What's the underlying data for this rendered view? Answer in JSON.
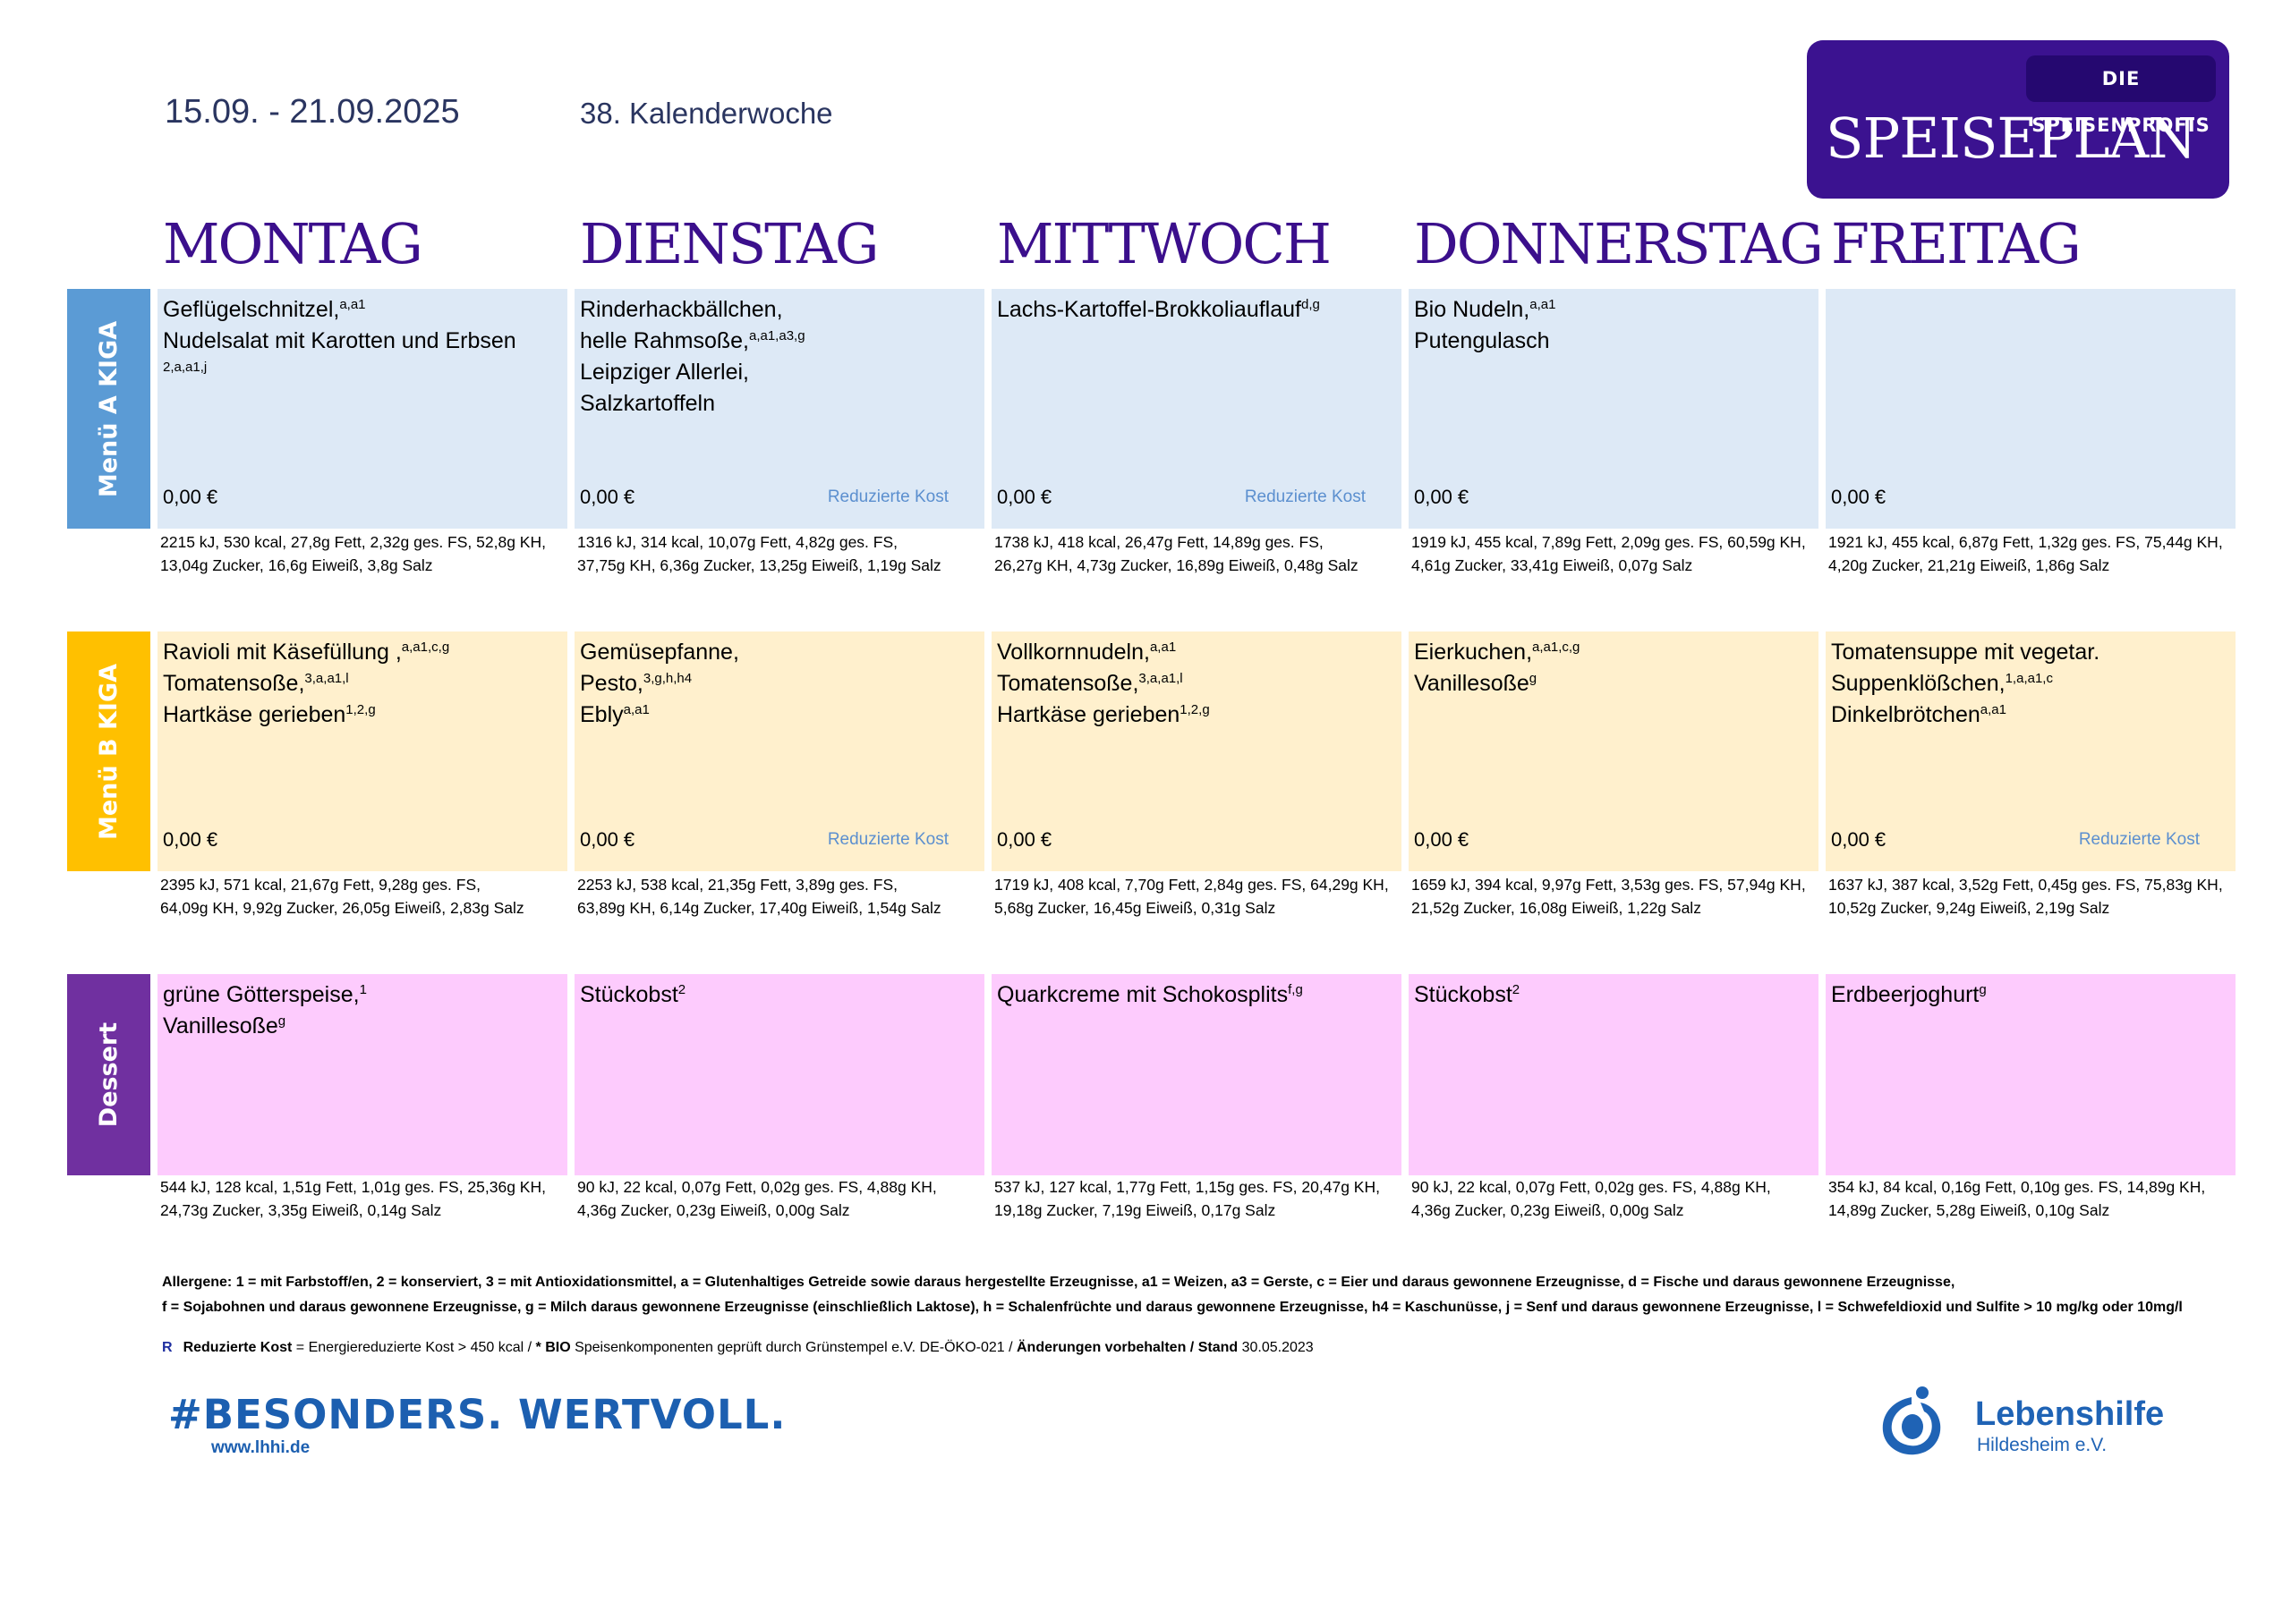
{
  "header": {
    "date_range": "15.09. - 21.09.2025",
    "calendar_week": "38. Kalenderwoche",
    "brand_tag": "DIE SPEISENPROFIS",
    "brand_title": "SPEISEPLAN"
  },
  "days": [
    "MONTAG",
    "DIENSTAG",
    "MITTWOCH",
    "DONNERSTAG",
    "FREITAG"
  ],
  "rows": [
    {
      "label": "Menü A KIGA",
      "color": "#5b9bd5",
      "cells": [
        {
          "lines": [
            {
              "text": "Geflügelschnitzel,",
              "sup": "a,a1"
            },
            {
              "text": "Nudelsalat mit Karotten und Erbsen",
              "sup": ""
            },
            {
              "text": "",
              "sup": "2,a,a1,j"
            }
          ],
          "price": "0,00 €",
          "tag": "",
          "nutrition": [
            "2215 kJ, 530 kcal, 27,8g Fett, 2,32g ges. FS, 52,8g KH,",
            "13,04g Zucker, 16,6g Eiweiß, 3,8g Salz"
          ]
        },
        {
          "lines": [
            {
              "text": "Rinderhackbällchen,",
              "sup": ""
            },
            {
              "text": "helle Rahmsoße,",
              "sup": "a,a1,a3,g"
            },
            {
              "text": "Leipziger Allerlei,",
              "sup": ""
            },
            {
              "text": "Salzkartoffeln",
              "sup": ""
            }
          ],
          "price": "0,00 €",
          "tag": "Reduzierte Kost",
          "nutrition": [
            "1316 kJ, 314 kcal, 10,07g Fett, 4,82g ges. FS,",
            "37,75g KH, 6,36g Zucker, 13,25g Eiweiß, 1,19g Salz"
          ]
        },
        {
          "lines": [
            {
              "text": "Lachs-Kartoffel-Brokkoliauflauf",
              "sup": "d,g"
            }
          ],
          "price": "0,00 €",
          "tag": "Reduzierte Kost",
          "nutrition": [
            "1738 kJ, 418 kcal, 26,47g Fett, 14,89g ges. FS,",
            "26,27g KH, 4,73g Zucker, 16,89g Eiweiß, 0,48g Salz"
          ]
        },
        {
          "lines": [
            {
              "text": "Bio Nudeln,",
              "sup": "a,a1"
            },
            {
              "text": "Putengulasch",
              "sup": ""
            }
          ],
          "price": "0,00 €",
          "tag": "",
          "nutrition": [
            "1919 kJ, 455 kcal, 7,89g Fett, 2,09g ges. FS, 60,59g KH,",
            "4,61g Zucker, 33,41g Eiweiß, 0,07g Salz"
          ]
        },
        {
          "lines": [],
          "price": "0,00 €",
          "tag": "",
          "nutrition": [
            "1921 kJ, 455 kcal, 6,87g Fett, 1,32g ges. FS, 75,44g KH,",
            "4,20g Zucker, 21,21g Eiweiß, 1,86g Salz"
          ]
        }
      ]
    },
    {
      "label": "Menü B KIGA",
      "color": "#ffc000",
      "cells": [
        {
          "lines": [
            {
              "text": "Ravioli mit Käsefüllung ,",
              "sup": "a,a1,c,g"
            },
            {
              "text": "Tomatensoße,",
              "sup": "3,a,a1,l"
            },
            {
              "text": "Hartkäse gerieben",
              "sup": "1,2,g"
            }
          ],
          "price": "0,00 €",
          "tag": "",
          "nutrition": [
            "2395 kJ, 571 kcal, 21,67g Fett, 9,28g ges. FS,",
            "64,09g KH, 9,92g Zucker, 26,05g Eiweiß, 2,83g Salz"
          ]
        },
        {
          "lines": [
            {
              "text": "Gemüsepfanne,",
              "sup": ""
            },
            {
              "text": "Pesto,",
              "sup": "3,g,h,h4"
            },
            {
              "text": "Ebly",
              "sup": "a,a1"
            }
          ],
          "price": "0,00 €",
          "tag": "Reduzierte Kost",
          "nutrition": [
            "2253 kJ, 538 kcal, 21,35g Fett, 3,89g ges. FS,",
            "63,89g KH, 6,14g Zucker, 17,40g Eiweiß, 1,54g Salz"
          ]
        },
        {
          "lines": [
            {
              "text": "Vollkornnudeln,",
              "sup": "a,a1"
            },
            {
              "text": "Tomatensoße,",
              "sup": "3,a,a1,l"
            },
            {
              "text": "Hartkäse gerieben",
              "sup": "1,2,g"
            }
          ],
          "price": "0,00 €",
          "tag": "",
          "nutrition": [
            "1719 kJ, 408 kcal, 7,70g Fett, 2,84g ges. FS, 64,29g KH,",
            "5,68g Zucker, 16,45g Eiweiß, 0,31g Salz"
          ]
        },
        {
          "lines": [
            {
              "text": "Eierkuchen,",
              "sup": "a,a1,c,g"
            },
            {
              "text": "Vanillesoße",
              "sup": "g"
            }
          ],
          "price": "0,00 €",
          "tag": "",
          "nutrition": [
            "1659 kJ, 394 kcal, 9,97g Fett, 3,53g ges. FS, 57,94g KH,",
            "21,52g Zucker, 16,08g Eiweiß, 1,22g Salz"
          ]
        },
        {
          "lines": [
            {
              "text": "Tomatensuppe mit vegetar.",
              "sup": ""
            },
            {
              "text": "Suppenklößchen,",
              "sup": "1,a,a1,c"
            },
            {
              "text": "Dinkelbrötchen",
              "sup": "a,a1"
            }
          ],
          "price": "0,00 €",
          "tag": "Reduzierte Kost",
          "nutrition": [
            "1637 kJ, 387 kcal, 3,52g Fett, 0,45g ges. FS, 75,83g KH,",
            "10,52g Zucker, 9,24g Eiweiß, 2,19g Salz"
          ]
        }
      ]
    },
    {
      "label": "Dessert",
      "color": "#7030a0",
      "cells": [
        {
          "lines": [
            {
              "text": "grüne Götterspeise,",
              "sup": "1"
            },
            {
              "text": "Vanillesoße",
              "sup": "g"
            }
          ],
          "price": "",
          "tag": "",
          "nutrition": [
            "544 kJ, 128 kcal, 1,51g Fett, 1,01g ges. FS, 25,36g KH,",
            "24,73g Zucker, 3,35g Eiweiß, 0,14g Salz"
          ]
        },
        {
          "lines": [
            {
              "text": "Stückobst",
              "sup": "2"
            }
          ],
          "price": "",
          "tag": "",
          "nutrition": [
            "90 kJ, 22 kcal, 0,07g Fett, 0,02g ges. FS, 4,88g KH,",
            "4,36g Zucker, 0,23g Eiweiß, 0,00g Salz"
          ]
        },
        {
          "lines": [
            {
              "text": "Quarkcreme mit Schokosplits",
              "sup": "f,g"
            }
          ],
          "price": "",
          "tag": "",
          "nutrition": [
            "537 kJ, 127 kcal, 1,77g Fett, 1,15g ges. FS, 20,47g KH,",
            "19,18g Zucker, 7,19g Eiweiß, 0,17g Salz"
          ]
        },
        {
          "lines": [
            {
              "text": "Stückobst",
              "sup": "2"
            }
          ],
          "price": "",
          "tag": "",
          "nutrition": [
            "90 kJ, 22 kcal, 0,07g Fett, 0,02g ges. FS, 4,88g KH,",
            "4,36g Zucker, 0,23g Eiweiß, 0,00g Salz"
          ]
        },
        {
          "lines": [
            {
              "text": "Erdbeerjoghurt",
              "sup": "g"
            }
          ],
          "price": "",
          "tag": "",
          "nutrition": [
            "354 kJ, 84 kcal, 0,16g Fett, 0,10g ges. FS, 14,89g KH,",
            "14,89g Zucker, 5,28g Eiweiß, 0,10g Salz"
          ]
        }
      ]
    }
  ],
  "footer": {
    "allergen_line1": "Allergene: 1 = mit Farbstoff/en, 2 = konserviert, 3 = mit Antioxidationsmittel, a = Glutenhaltiges Getreide sowie daraus hergestellte Erzeugnisse, a1 = Weizen, a3 = Gerste, c = Eier und daraus gewonnene Erzeugnisse, d = Fische und daraus gewonnene Erzeugnisse,",
    "allergen_line2": "f = Sojabohnen und daraus gewonnene Erzeugnisse, g = Milch daraus gewonnene Erzeugnisse (einschließlich Laktose), h = Schalenfrüchte und daraus gewonnene Erzeugnisse, h4 = Kaschunüsse, j = Senf und daraus gewonnene Erzeugnisse, l = Schwefeldioxid und Sulfite > 10 mg/kg oder 10mg/l",
    "footnote_marker": "R",
    "footnote_reduz_bold": "Reduzierte Kost",
    "footnote_reduz_text": " = Energiereduzierte Kost > 450 kcal / ",
    "footnote_bio_bold": "* BIO",
    "footnote_bio_text": " Speisenkomponenten geprüft durch Grünstempel e.V. DE-ÖKO-021 / ",
    "footnote_changes_bold": "Änderungen vorbehalten / Stand",
    "footnote_date": " 30.05.2023",
    "slogan": "#BESONDERS. WERTVOLL.",
    "website": "www.lhhi.de",
    "org_name": "Lebenshilfe",
    "org_sub": "Hildesheim e.V."
  },
  "icons": {
    "org_logo": "lebenshilfe-logo-icon"
  }
}
